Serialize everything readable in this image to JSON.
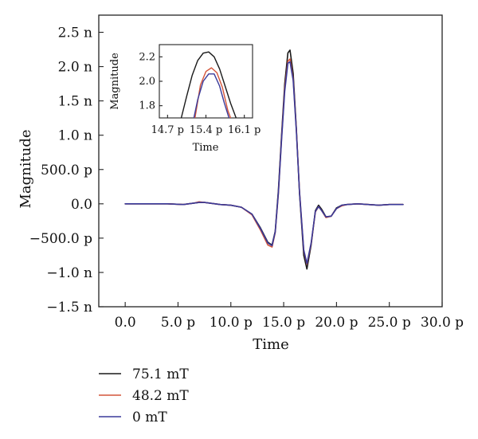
{
  "chart_data": {
    "main": {
      "type": "line",
      "xlabel": "Time",
      "ylabel": "Magnitude",
      "xlim": [
        -2.5,
        30.0
      ],
      "ylim": [
        -1.5,
        2.75
      ],
      "x_ticks": [
        0,
        5,
        10,
        15,
        20,
        25,
        30
      ],
      "x_tick_labels": [
        "0.0",
        "5.0 p",
        "10.0 p",
        "15.0 p",
        "20.0 p",
        "25.0 p",
        "30.0 p"
      ],
      "y_ticks": [
        -1.5,
        -1.0,
        -0.5,
        0.0,
        0.5,
        1.0,
        1.5,
        2.0,
        2.5
      ],
      "y_tick_labels": [
        "−1.5 n",
        "−1.0 n",
        "−500.0 p",
        "0.0",
        "500.0 p",
        "1.0 n",
        "1.5 n",
        "2.0 n",
        "2.5 n"
      ],
      "series": [
        {
          "name": "75.1 mT",
          "color": "#1a1a1a",
          "x": [
            0.0,
            2.0,
            4.0,
            5.5,
            6.5,
            7.0,
            7.5,
            8.0,
            9.0,
            10.0,
            11.0,
            12.0,
            12.8,
            13.5,
            13.9,
            14.2,
            14.5,
            14.8,
            15.1,
            15.4,
            15.6,
            15.9,
            16.2,
            16.5,
            16.9,
            17.2,
            17.6,
            18.0,
            18.3,
            18.6,
            19.0,
            19.5,
            20.0,
            20.5,
            21.0,
            22.0,
            23.0,
            24.0,
            25.0,
            26.3
          ],
          "y": [
            0.0,
            0.0,
            0.0,
            -0.01,
            0.01,
            0.02,
            0.02,
            0.01,
            -0.01,
            -0.02,
            -0.05,
            -0.15,
            -0.35,
            -0.56,
            -0.6,
            -0.4,
            0.2,
            1.0,
            1.75,
            2.2,
            2.24,
            1.9,
            1.1,
            0.15,
            -0.75,
            -0.95,
            -0.6,
            -0.1,
            -0.02,
            -0.08,
            -0.19,
            -0.18,
            -0.06,
            -0.02,
            -0.01,
            0.0,
            -0.01,
            -0.02,
            -0.01,
            -0.01
          ]
        },
        {
          "name": "48.2 mT",
          "color": "#d4553a",
          "x": [
            0.0,
            2.0,
            4.0,
            5.5,
            6.5,
            7.0,
            7.5,
            8.0,
            9.0,
            10.0,
            11.0,
            12.0,
            12.8,
            13.5,
            13.9,
            14.2,
            14.5,
            14.8,
            15.1,
            15.4,
            15.6,
            15.9,
            16.2,
            16.5,
            16.9,
            17.2,
            17.6,
            18.0,
            18.3,
            18.6,
            19.0,
            19.5,
            20.0,
            20.5,
            21.0,
            22.0,
            23.0,
            24.0,
            25.0,
            26.3
          ],
          "y": [
            0.0,
            0.0,
            0.0,
            -0.01,
            0.01,
            0.03,
            0.02,
            0.01,
            -0.01,
            -0.02,
            -0.05,
            -0.16,
            -0.38,
            -0.6,
            -0.63,
            -0.42,
            0.15,
            0.95,
            1.68,
            2.08,
            2.11,
            1.82,
            1.08,
            0.18,
            -0.68,
            -0.88,
            -0.58,
            -0.12,
            -0.04,
            -0.1,
            -0.2,
            -0.18,
            -0.07,
            -0.03,
            -0.01,
            0.0,
            -0.01,
            -0.02,
            -0.01,
            -0.01
          ]
        },
        {
          "name": "0 mT",
          "color": "#3a3a9a",
          "x": [
            0.0,
            2.0,
            4.0,
            5.5,
            6.5,
            7.0,
            7.5,
            8.0,
            9.0,
            10.0,
            11.0,
            12.0,
            12.8,
            13.5,
            13.9,
            14.2,
            14.5,
            14.8,
            15.1,
            15.4,
            15.6,
            15.9,
            16.2,
            16.5,
            16.9,
            17.2,
            17.6,
            18.0,
            18.3,
            18.6,
            19.0,
            19.5,
            20.0,
            20.5,
            21.0,
            22.0,
            23.0,
            24.0,
            25.0,
            26.3
          ],
          "y": [
            0.0,
            0.0,
            0.0,
            -0.01,
            0.01,
            0.02,
            0.02,
            0.01,
            -0.01,
            -0.02,
            -0.05,
            -0.15,
            -0.36,
            -0.57,
            -0.61,
            -0.41,
            0.16,
            0.93,
            1.64,
            2.05,
            2.07,
            1.8,
            1.06,
            0.17,
            -0.67,
            -0.87,
            -0.57,
            -0.11,
            -0.04,
            -0.1,
            -0.19,
            -0.18,
            -0.07,
            -0.02,
            -0.01,
            0.0,
            -0.01,
            -0.02,
            -0.01,
            -0.01
          ]
        }
      ],
      "legend_position": "bottom-left (below plot)",
      "grid": false
    },
    "inset": {
      "type": "line",
      "xlabel": "Time",
      "ylabel": "Magnitude",
      "xlim": [
        14.55,
        16.25
      ],
      "ylim": [
        1.7,
        2.3
      ],
      "x_ticks": [
        14.7,
        15.4,
        16.1
      ],
      "x_tick_labels": [
        "14.7 p",
        "15.4 p",
        "16.1 p"
      ],
      "y_ticks": [
        1.8,
        2.0,
        2.2
      ],
      "y_tick_labels": [
        "1.8",
        "2.0",
        "2.2"
      ],
      "series": [
        {
          "name": "75.1 mT",
          "color": "#1a1a1a",
          "x": [
            14.95,
            15.05,
            15.15,
            15.25,
            15.35,
            15.45,
            15.55,
            15.65,
            15.75,
            15.85,
            15.95
          ],
          "y": [
            1.7,
            1.88,
            2.05,
            2.17,
            2.23,
            2.24,
            2.2,
            2.1,
            1.96,
            1.82,
            1.7
          ]
        },
        {
          "name": "48.2 mT",
          "color": "#d4553a",
          "x": [
            15.2,
            15.3,
            15.4,
            15.5,
            15.6,
            15.7,
            15.8,
            15.85
          ],
          "y": [
            1.7,
            1.97,
            2.08,
            2.11,
            2.07,
            1.95,
            1.76,
            1.7
          ]
        },
        {
          "name": "0 mT",
          "color": "#3a3a9a",
          "x": [
            15.18,
            15.25,
            15.35,
            15.45,
            15.55,
            15.65,
            15.73,
            15.82
          ],
          "y": [
            1.7,
            1.85,
            2.0,
            2.06,
            2.06,
            1.96,
            1.83,
            1.7
          ]
        }
      ]
    }
  },
  "legend": {
    "items": [
      {
        "label": "75.1 mT",
        "color": "#1a1a1a"
      },
      {
        "label": "48.2 mT",
        "color": "#d4553a"
      },
      {
        "label": "0 mT",
        "color": "#3a3a9a"
      }
    ]
  }
}
